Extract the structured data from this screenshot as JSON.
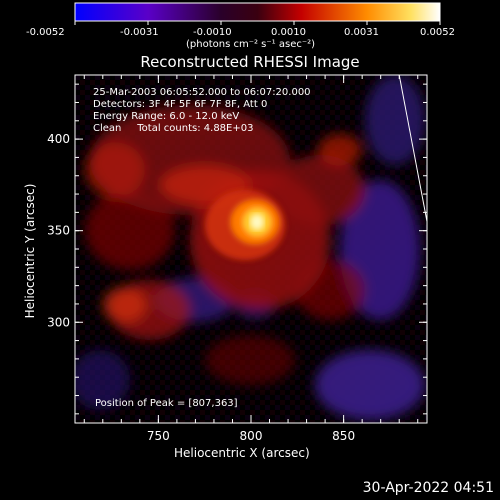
{
  "colorbar": {
    "tick_labels": [
      "-0.0052",
      "-0.0031",
      "-0.0010",
      "0.0010",
      "0.0031",
      "0.0052"
    ],
    "units_label": "(photons cm⁻² s⁻¹ asec⁻²)"
  },
  "chart_data": {
    "type": "heatmap",
    "title": "Reconstructed RHESSI Image",
    "xlabel": "Heliocentric X (arcsec)",
    "ylabel": "Heliocentric Y (arcsec)",
    "xlim": [
      705,
      895
    ],
    "ylim": [
      245,
      435
    ],
    "x_ticks": [
      "750",
      "800",
      "850"
    ],
    "y_ticks": [
      "400",
      "350",
      "300"
    ],
    "x_tick_values": [
      750,
      800,
      850
    ],
    "y_tick_values": [
      400,
      350,
      300
    ],
    "colorbar_range": [
      -0.0052,
      0.0052
    ],
    "colormap": "blue-purple-black-red-orange-yellow-white",
    "peak": {
      "x": 807,
      "y": 363
    },
    "annotations": [
      "25-Mar-2003 06:05:52.000 to 06:07:20.000",
      "Detectors: 3F 4F 5F 6F 7F 8F, Att 0",
      "Energy Range: 6.0 - 12.0 keV",
      "Clean     Total counts: 4.88E+03"
    ],
    "peak_label": "Position of Peak = [807,363]",
    "limb_line": {
      "from": [
        880,
        435
      ],
      "to": [
        895,
        355
      ]
    }
  },
  "footer": {
    "timestamp": "30-Apr-2022 04:51"
  },
  "colors": {
    "background": "#000000",
    "foreground": "#ffffff",
    "peak": "#fff9c0",
    "negative": "#3a1a8a"
  }
}
